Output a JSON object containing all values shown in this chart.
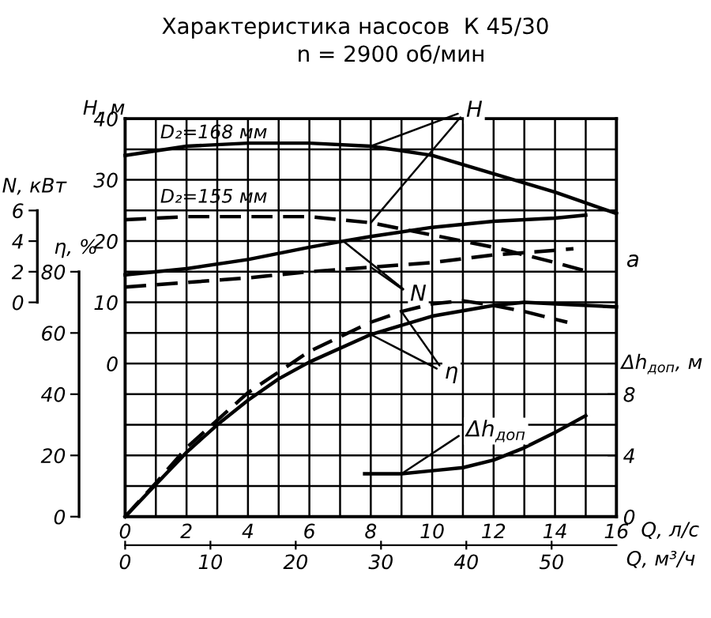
{
  "chart_data": [
    {
      "type": "line",
      "title": "Характеристика насосов  К 45/30",
      "subtitle": "n = 2900 об/мин",
      "xlabel": "Q, л/с",
      "x2label": "Q, м³/ч",
      "ylabel": "H, м",
      "xlim": [
        0,
        16
      ],
      "xticks": [
        0,
        {
          "value": 1,
          "label": null
        },
        2,
        {
          "value": 3,
          "label": null
        },
        4,
        {
          "value": 5,
          "label": null
        },
        6,
        {
          "value": 7,
          "label": null
        },
        8,
        {
          "value": 9,
          "label": null
        },
        10,
        {
          "value": 11,
          "label": null
        },
        12,
        {
          "value": 13,
          "label": null
        },
        14,
        {
          "value": 15,
          "label": null
        },
        16
      ],
      "x2lim": [
        0,
        57.6
      ],
      "x2ticks": [
        0,
        10,
        20,
        30,
        40,
        50
      ],
      "ylim": [
        -25,
        40
      ],
      "yticks": [
        {
          "value": -25,
          "label": null
        },
        {
          "value": -20,
          "label": null
        },
        {
          "value": -15,
          "label": null
        },
        {
          "value": -10,
          "label": null
        },
        {
          "value": -5,
          "label": null
        },
        0,
        {
          "value": 5,
          "label": null
        },
        10,
        {
          "value": 15,
          "label": null
        },
        20,
        {
          "value": 25,
          "label": null
        },
        30,
        {
          "value": 35,
          "label": null
        },
        40
      ],
      "grid": true,
      "legend": false,
      "series": [
        {
          "name": "D₂=168 мм",
          "color": "#000000",
          "line_style": "solid",
          "x": [
            0,
            2,
            4,
            6,
            8,
            10,
            12,
            14,
            16
          ],
          "values": [
            34,
            35.5,
            36,
            36,
            35.5,
            34,
            31,
            28,
            24.5
          ]
        },
        {
          "name": "D₂=155 мм",
          "color": "#000000",
          "line_style": "dashed",
          "x": [
            0,
            2,
            4,
            6,
            8,
            10,
            12,
            14,
            15.1
          ],
          "values": [
            23.5,
            24,
            24,
            24,
            23,
            21,
            19,
            16.5,
            15
          ]
        }
      ],
      "annotations": [
        {
          "text": "H",
          "x": 8,
          "y": 35.5
        }
      ]
    },
    {
      "type": "line",
      "ylabel": "N, кВт",
      "xlim": [
        0,
        16
      ],
      "ylim": [
        -14,
        12
      ],
      "yticks": [
        0,
        2,
        4,
        6
      ],
      "tick_labels": "y",
      "series": [
        {
          "color": "#000000",
          "line_style": "solid",
          "x": [
            0,
            2,
            4,
            6,
            7.1,
            8,
            10,
            12,
            14,
            15
          ],
          "values": [
            1.8,
            2.2,
            2.8,
            3.6,
            4.0,
            4.3,
            4.9,
            5.3,
            5.5,
            5.7
          ]
        },
        {
          "color": "#000000",
          "line_style": "dashed",
          "x": [
            0,
            2,
            4,
            6,
            8,
            10,
            12,
            14,
            14.6
          ],
          "values": [
            1.0,
            1.3,
            1.6,
            2.0,
            2.3,
            2.6,
            3.1,
            3.4,
            3.5
          ]
        }
      ],
      "annotations": [
        {
          "text": "N",
          "x": 7.1,
          "y": 4.0
        },
        "a"
      ]
    },
    {
      "type": "line",
      "ylabel": "η, %",
      "xlim": [
        0,
        16
      ],
      "ylim": [
        0,
        130
      ],
      "yticks": [
        0,
        20,
        40,
        60,
        80
      ],
      "tick_labels": "y",
      "series": [
        {
          "color": "#000000",
          "line_style": "solid",
          "x": [
            0,
            1,
            2,
            3,
            4,
            5,
            6,
            8,
            10,
            12,
            13,
            14,
            16
          ],
          "values": [
            0,
            10.5,
            21,
            30,
            38,
            45,
            50.5,
            59.5,
            65.5,
            69,
            70,
            69.5,
            68.5
          ]
        },
        {
          "color": "#000000",
          "line_style": "dashed",
          "x": [
            0,
            1,
            2,
            4,
            6,
            8,
            9,
            10,
            11,
            12,
            13,
            14.4
          ],
          "values": [
            0,
            11,
            22.5,
            40.5,
            54,
            63.5,
            67,
            69.5,
            70.5,
            69,
            67,
            63.5
          ]
        }
      ],
      "annotations": [
        {
          "text": "η",
          "x": 8,
          "y": 59.5
        }
      ]
    },
    {
      "type": "line",
      "ylabel": "Δh$_{доп}$, м",
      "xlim": [
        0,
        16
      ],
      "ylim": [
        0,
        26
      ],
      "yticks": [
        0,
        4,
        8
      ],
      "tick_labels": "y",
      "series": [
        {
          "color": "#000000",
          "line_style": "solid",
          "x": [
            7.8,
            9,
            10,
            11,
            12,
            13,
            14,
            15
          ],
          "values": [
            2.8,
            2.8,
            3.0,
            3.2,
            3.7,
            4.5,
            5.5,
            6.6
          ]
        }
      ],
      "annotations": [
        {
          "text": "Δh$_{доп}$",
          "x": 9,
          "y": 2.8
        }
      ]
    }
  ]
}
